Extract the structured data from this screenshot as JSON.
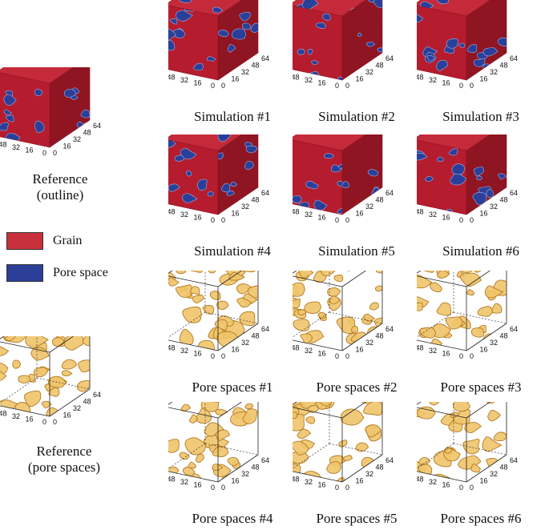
{
  "colors": {
    "grain": "#b51c2e",
    "grain_top": "#c52a3a",
    "grain_side": "#8f1522",
    "pore": "#2a3f9a",
    "pore_fill": "#f0c46a",
    "pore_dark": "#b37a22",
    "frame": "#222222"
  },
  "axis_ticks": [
    "0",
    "16",
    "32",
    "48",
    "64"
  ],
  "reference": {
    "outline_caption": [
      "Reference",
      "(outline)"
    ],
    "pores_caption": [
      "Reference",
      "(pore spaces)"
    ]
  },
  "legend": {
    "grain_label": "Grain",
    "pore_label": "Pore space"
  },
  "simulations": [
    {
      "caption": "Simulation #1"
    },
    {
      "caption": "Simulation #2"
    },
    {
      "caption": "Simulation #3"
    },
    {
      "caption": "Simulation #4"
    },
    {
      "caption": "Simulation #5"
    },
    {
      "caption": "Simulation #6"
    }
  ],
  "pore_spaces": [
    {
      "caption": "Pore spaces #1"
    },
    {
      "caption": "Pore spaces #2"
    },
    {
      "caption": "Pore spaces #3"
    },
    {
      "caption": "Pore spaces #4"
    },
    {
      "caption": "Pore spaces #5"
    },
    {
      "caption": "Pore spaces #6"
    }
  ]
}
